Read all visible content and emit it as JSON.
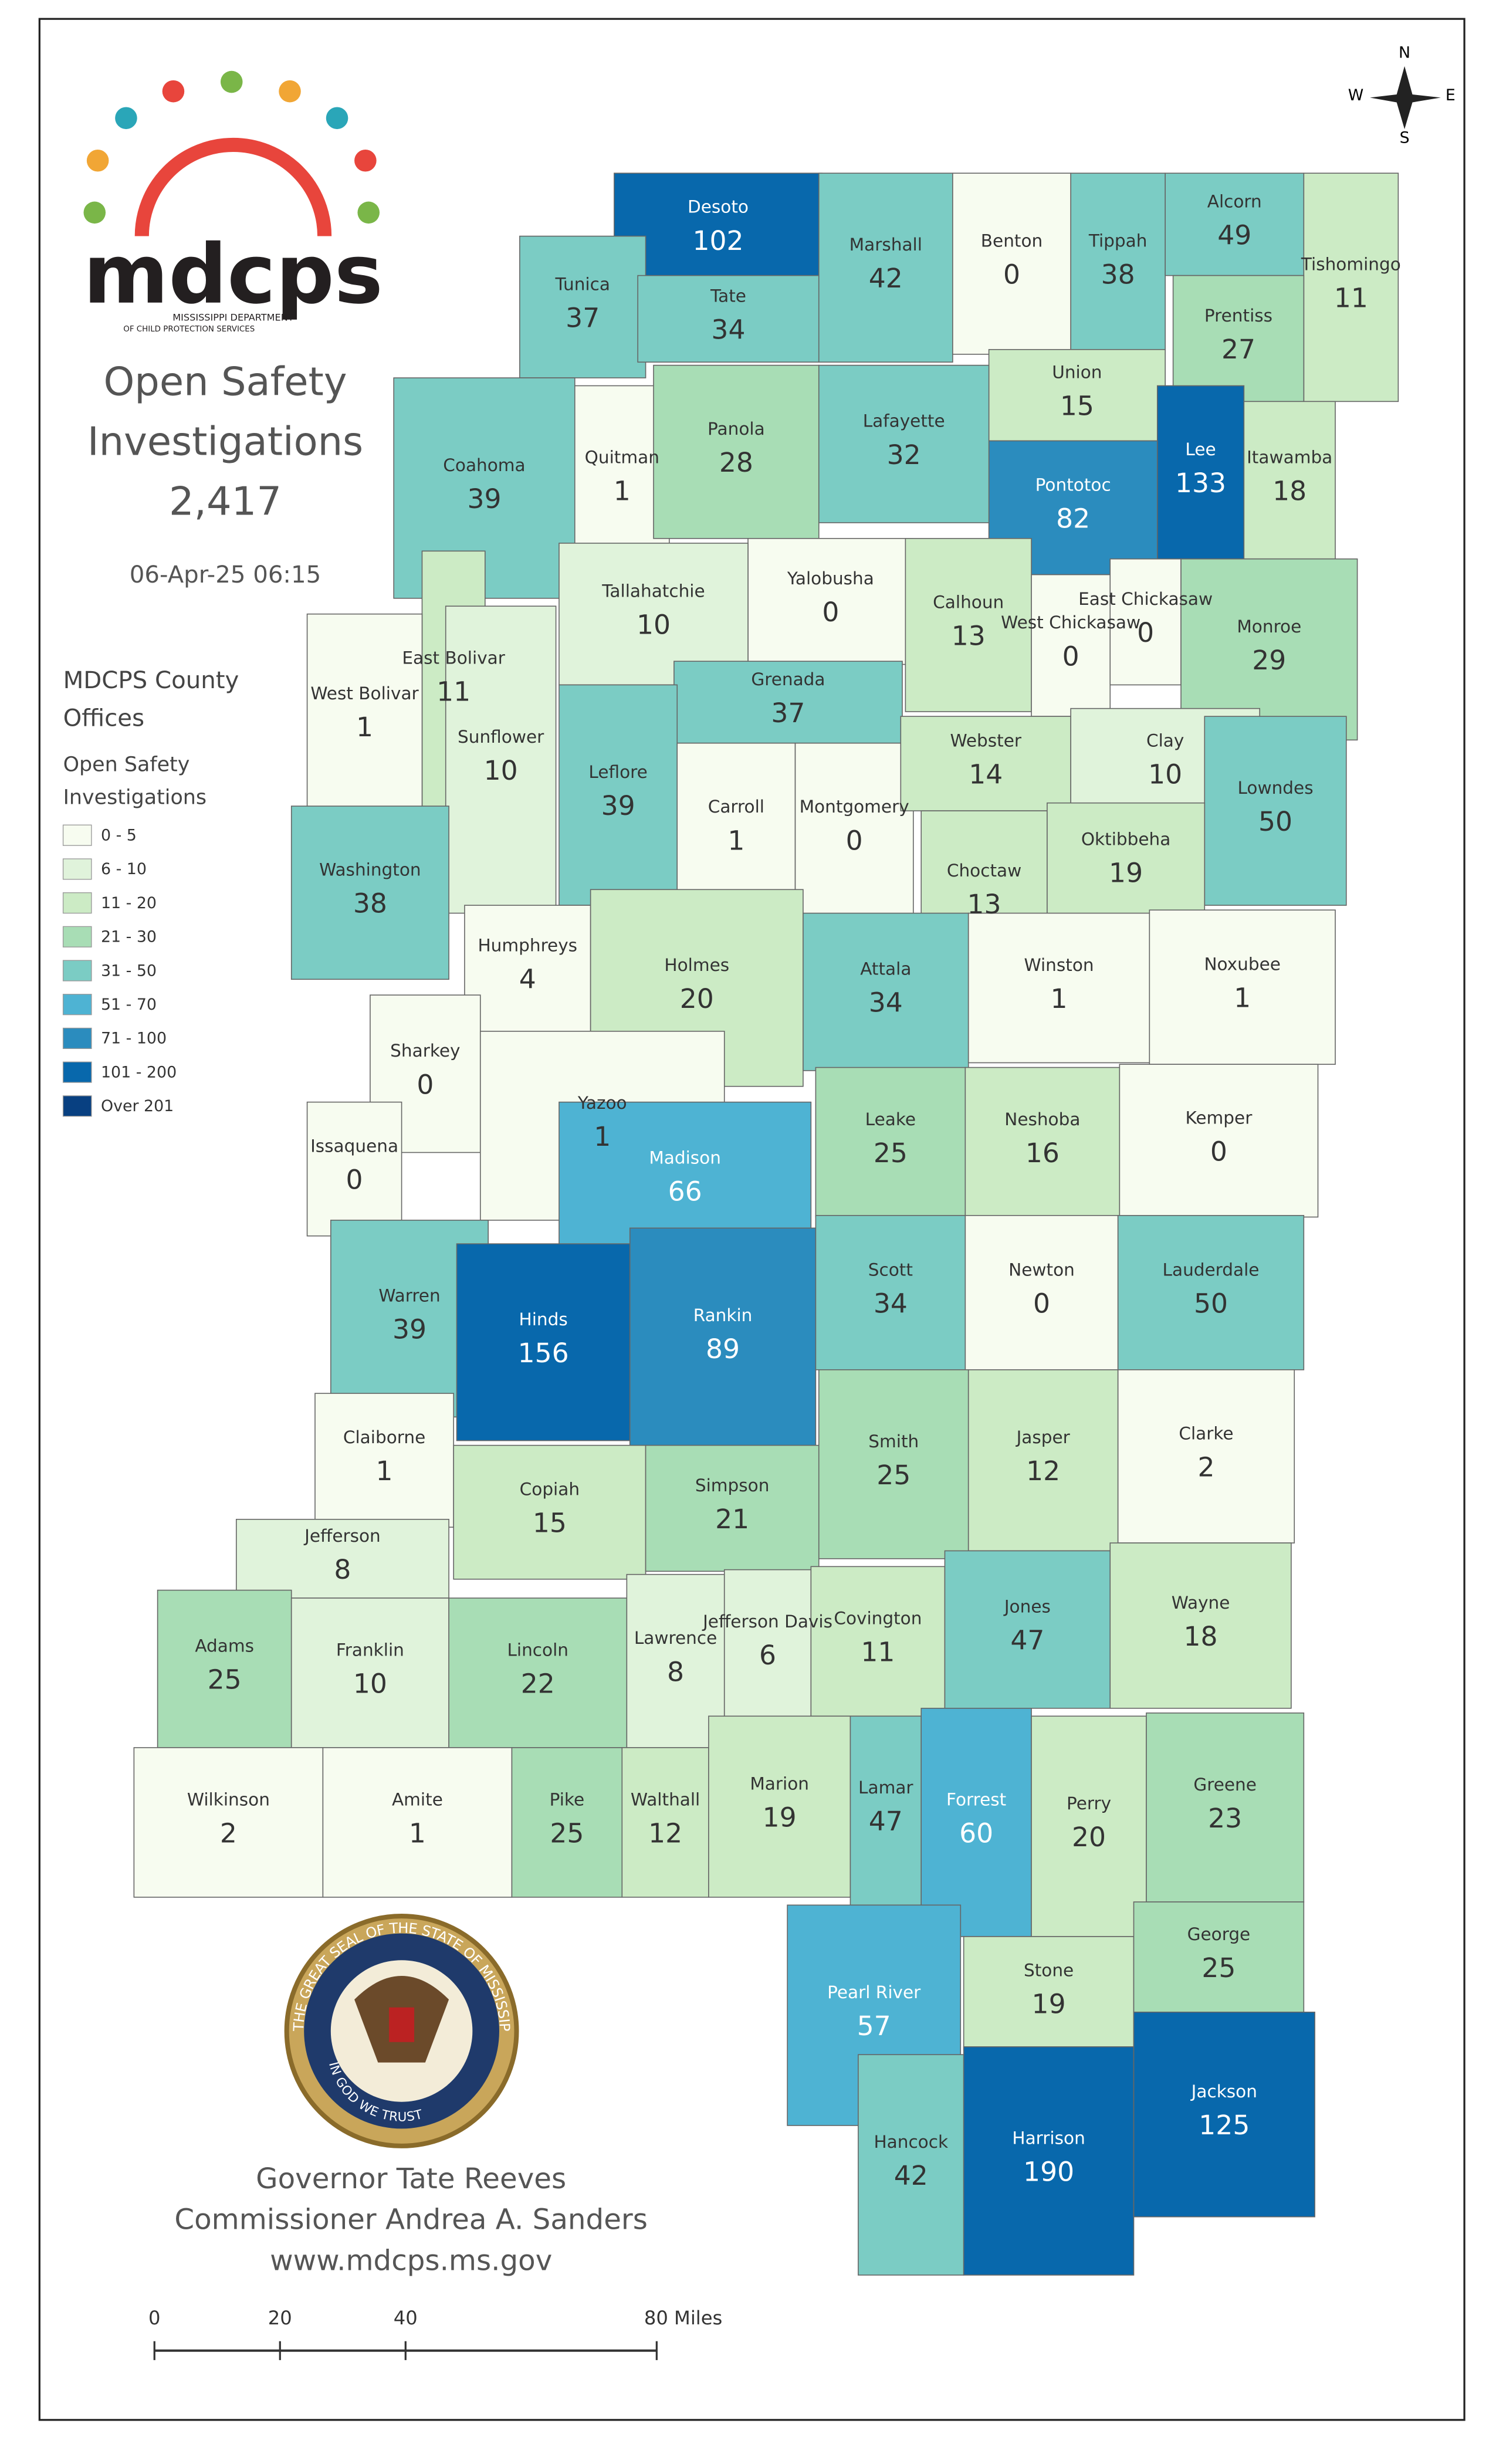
{
  "header": {
    "logo_text": "mdcps",
    "logo_subtitle_1": "MISSISSIPPI DEPARTMENT",
    "logo_subtitle_2": "OF CHILD PROTECTION SERVICES",
    "title_1": "Open Safety",
    "title_2": "Investigations",
    "total": "2,417",
    "timestamp": "06-Apr-25 06:15"
  },
  "legend": {
    "title_1": "MDCPS County",
    "title_2": "Offices",
    "subtitle_1": "Open Safety",
    "subtitle_2": "Investigations",
    "bins": [
      {
        "label": "0 - 5",
        "color": "#f7fcf0"
      },
      {
        "label": "6 - 10",
        "color": "#e0f3db"
      },
      {
        "label": "11 - 20",
        "color": "#ccebc5"
      },
      {
        "label": "21 - 30",
        "color": "#a8ddb5"
      },
      {
        "label": "31 - 50",
        "color": "#7bccc4"
      },
      {
        "label": "51 - 70",
        "color": "#4eb3d3"
      },
      {
        "label": "71 - 100",
        "color": "#2b8cbe"
      },
      {
        "label": "101 - 200",
        "color": "#0868ac"
      },
      {
        "label": "Over 201",
        "color": "#084081"
      }
    ]
  },
  "counties": [
    {
      "name": "Desoto",
      "value": 102
    },
    {
      "name": "Tunica",
      "value": 37
    },
    {
      "name": "Tate",
      "value": 34
    },
    {
      "name": "Marshall",
      "value": 42
    },
    {
      "name": "Benton",
      "value": 0
    },
    {
      "name": "Tippah",
      "value": 38
    },
    {
      "name": "Alcorn",
      "value": 49
    },
    {
      "name": "Tishomingo",
      "value": 11
    },
    {
      "name": "Prentiss",
      "value": 27
    },
    {
      "name": "Union",
      "value": 15
    },
    {
      "name": "Lee",
      "value": 133
    },
    {
      "name": "Itawamba",
      "value": 18
    },
    {
      "name": "Pontotoc",
      "value": 82
    },
    {
      "name": "Coahoma",
      "value": 39
    },
    {
      "name": "Quitman",
      "value": 1
    },
    {
      "name": "Panola",
      "value": 28
    },
    {
      "name": "Lafayette",
      "value": 32
    },
    {
      "name": "Yalobusha",
      "value": 0
    },
    {
      "name": "Calhoun",
      "value": 13
    },
    {
      "name": "West Chickasaw",
      "value": 0
    },
    {
      "name": "East Chickasaw",
      "value": 0
    },
    {
      "name": "Monroe",
      "value": 29
    },
    {
      "name": "Tallahatchie",
      "value": 10
    },
    {
      "name": "Grenada",
      "value": 37
    },
    {
      "name": "East Bolivar",
      "value": 11
    },
    {
      "name": "West Bolivar",
      "value": 1
    },
    {
      "name": "Sunflower",
      "value": 10
    },
    {
      "name": "Leflore",
      "value": 39
    },
    {
      "name": "Carroll",
      "value": 1
    },
    {
      "name": "Montgomery",
      "value": 0
    },
    {
      "name": "Webster",
      "value": 14
    },
    {
      "name": "Clay",
      "value": 10
    },
    {
      "name": "Lowndes",
      "value": 50
    },
    {
      "name": "Choctaw",
      "value": 13
    },
    {
      "name": "Oktibbeha",
      "value": 19
    },
    {
      "name": "Washington",
      "value": 38
    },
    {
      "name": "Humphreys",
      "value": 4
    },
    {
      "name": "Holmes",
      "value": 20
    },
    {
      "name": "Attala",
      "value": 34
    },
    {
      "name": "Winston",
      "value": 1
    },
    {
      "name": "Noxubee",
      "value": 1
    },
    {
      "name": "Sharkey",
      "value": 0
    },
    {
      "name": "Yazoo",
      "value": 1
    },
    {
      "name": "Leake",
      "value": 25
    },
    {
      "name": "Neshoba",
      "value": 16
    },
    {
      "name": "Kemper",
      "value": 0
    },
    {
      "name": "Issaquena",
      "value": 0
    },
    {
      "name": "Madison",
      "value": 66
    },
    {
      "name": "Warren",
      "value": 39
    },
    {
      "name": "Hinds",
      "value": 156
    },
    {
      "name": "Rankin",
      "value": 89
    },
    {
      "name": "Scott",
      "value": 34
    },
    {
      "name": "Newton",
      "value": 0
    },
    {
      "name": "Lauderdale",
      "value": 50
    },
    {
      "name": "Claiborne",
      "value": 1
    },
    {
      "name": "Copiah",
      "value": 15
    },
    {
      "name": "Simpson",
      "value": 21
    },
    {
      "name": "Smith",
      "value": 25
    },
    {
      "name": "Jasper",
      "value": 12
    },
    {
      "name": "Clarke",
      "value": 2
    },
    {
      "name": "Jefferson",
      "value": 8
    },
    {
      "name": "Adams",
      "value": 25
    },
    {
      "name": "Franklin",
      "value": 10
    },
    {
      "name": "Lincoln",
      "value": 22
    },
    {
      "name": "Lawrence",
      "value": 8
    },
    {
      "name": "Jefferson Davis",
      "value": 6
    },
    {
      "name": "Covington",
      "value": 11
    },
    {
      "name": "Jones",
      "value": 47
    },
    {
      "name": "Wayne",
      "value": 18
    },
    {
      "name": "Wilkinson",
      "value": 2
    },
    {
      "name": "Amite",
      "value": 1
    },
    {
      "name": "Pike",
      "value": 25
    },
    {
      "name": "Walthall",
      "value": 12
    },
    {
      "name": "Marion",
      "value": 19
    },
    {
      "name": "Lamar",
      "value": 47
    },
    {
      "name": "Forrest",
      "value": 60
    },
    {
      "name": "Perry",
      "value": 20
    },
    {
      "name": "Greene",
      "value": 23
    },
    {
      "name": "Stone",
      "value": 19
    },
    {
      "name": "George",
      "value": 25
    },
    {
      "name": "Pearl River",
      "value": 57
    },
    {
      "name": "Hancock",
      "value": 42
    },
    {
      "name": "Harrison",
      "value": 190
    },
    {
      "name": "Jackson",
      "value": 125
    }
  ],
  "compass": {
    "n": "N",
    "s": "S",
    "e": "E",
    "w": "W"
  },
  "seal": {
    "outer_text": "THE GREAT SEAL OF THE STATE OF MISSISSIPPI",
    "inner_text": "IN GOD WE TRUST"
  },
  "footer": {
    "line_1": "Governor Tate Reeves",
    "line_2": "Commissioner Andrea A. Sanders",
    "line_3": "www.mdcps.ms.gov"
  },
  "scale_bar": {
    "ticks": [
      0,
      20,
      40,
      {
        "value": 80,
        "label": "80 Miles"
      }
    ]
  }
}
